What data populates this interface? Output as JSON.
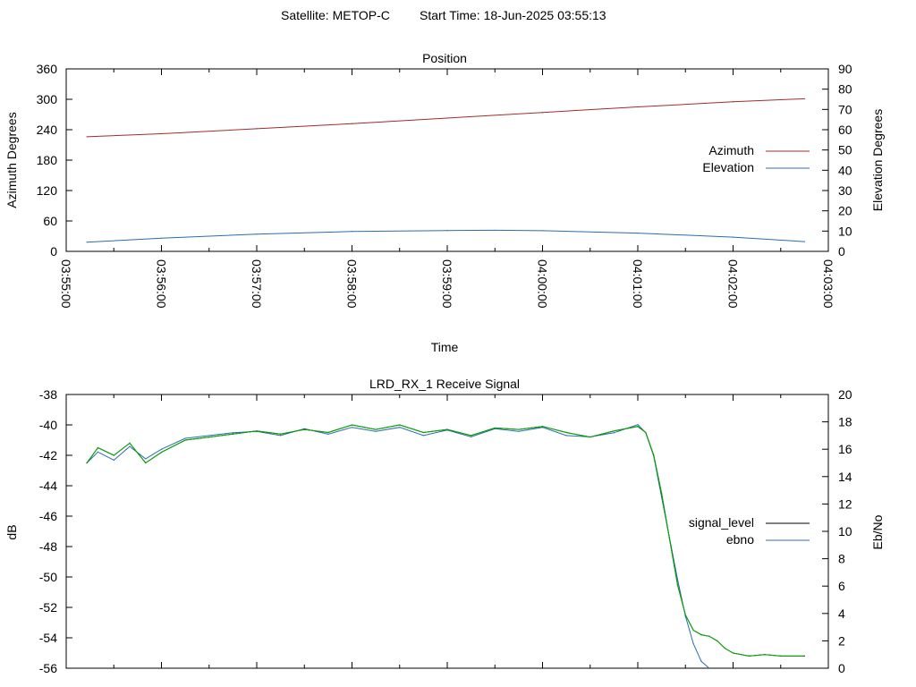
{
  "header": {
    "satellite_text": "Satellite: METOP-C",
    "start_time_text": "Start Time: 18-Jun-2025 03:55:13"
  },
  "colors": {
    "azimuth": "#a52a2a",
    "elevation": "#2a6db0",
    "signal_level": "#000000",
    "ebno": "#2a6db0",
    "signal_overlay": "#00b000"
  },
  "chart_data": [
    {
      "type": "line",
      "title": "Position",
      "xlabel": "Time",
      "ylabel": "Azimuth Degrees",
      "y2label": "Elevation Degrees",
      "xlim": [
        "03:55:00",
        "04:03:00"
      ],
      "ylim": [
        0,
        360
      ],
      "y2lim": [
        0,
        90
      ],
      "x_ticks": [
        "03:55:00",
        "03:56:00",
        "03:57:00",
        "03:58:00",
        "03:59:00",
        "04:00:00",
        "04:01:00",
        "04:02:00",
        "04:03:00"
      ],
      "y_ticks": [
        "0",
        "60",
        "120",
        "180",
        "240",
        "300",
        "360"
      ],
      "y2_ticks": [
        "0",
        "10",
        "20",
        "30",
        "40",
        "50",
        "60",
        "70",
        "80",
        "90"
      ],
      "grid": false,
      "legend": "right",
      "series": [
        {
          "name": "Azimuth",
          "axis": "y",
          "x": [
            "03:55:13",
            "03:56:00",
            "03:57:00",
            "03:58:00",
            "03:59:00",
            "04:00:00",
            "04:01:00",
            "04:02:00",
            "04:02:45"
          ],
          "values": [
            226,
            232,
            242,
            252,
            263,
            274,
            285,
            295,
            301
          ]
        },
        {
          "name": "Elevation",
          "axis": "y2",
          "x": [
            "03:55:13",
            "03:56:00",
            "03:57:00",
            "03:58:00",
            "03:59:00",
            "03:59:30",
            "04:00:00",
            "04:01:00",
            "04:02:00",
            "04:02:45"
          ],
          "values": [
            4.5,
            6.5,
            8.5,
            9.8,
            10.3,
            10.4,
            10.2,
            9.0,
            7.0,
            4.8
          ]
        }
      ]
    },
    {
      "type": "line",
      "title": "LRD_RX_1 Receive Signal",
      "ylabel": "dB",
      "y2label": "Eb/No",
      "xlim": [
        "03:55:00",
        "04:03:00"
      ],
      "ylim": [
        -56,
        -38
      ],
      "y2lim": [
        0,
        20
      ],
      "y_ticks": [
        "-56",
        "-54",
        "-52",
        "-50",
        "-48",
        "-46",
        "-44",
        "-42",
        "-40",
        "-38"
      ],
      "y2_ticks": [
        "0",
        "2",
        "4",
        "6",
        "8",
        "10",
        "12",
        "14",
        "16",
        "18",
        "20"
      ],
      "grid": false,
      "legend": "right",
      "series": [
        {
          "name": "signal_level",
          "axis": "y",
          "x": [
            "03:55:13",
            "03:55:20",
            "03:55:30",
            "03:55:40",
            "03:55:50",
            "03:56:00",
            "03:56:15",
            "03:56:30",
            "03:56:45",
            "03:57:00",
            "03:57:15",
            "03:57:30",
            "03:57:45",
            "03:58:00",
            "03:58:15",
            "03:58:30",
            "03:58:45",
            "03:59:00",
            "03:59:15",
            "03:59:30",
            "03:59:45",
            "04:00:00",
            "04:00:15",
            "04:00:30",
            "04:00:45",
            "04:01:00",
            "04:01:05",
            "04:01:10",
            "04:01:15",
            "04:01:20",
            "04:01:25",
            "04:01:30",
            "04:01:35",
            "04:01:40",
            "04:01:45",
            "04:01:50",
            "04:01:55",
            "04:02:00",
            "04:02:10",
            "04:02:20",
            "04:02:30",
            "04:02:45"
          ],
          "values": [
            -42.5,
            -41.5,
            -42.0,
            -41.2,
            -42.5,
            -41.8,
            -41.0,
            -40.8,
            -40.6,
            -40.4,
            -40.6,
            -40.3,
            -40.5,
            -40.0,
            -40.3,
            -40.0,
            -40.5,
            -40.3,
            -40.7,
            -40.2,
            -40.3,
            -40.1,
            -40.5,
            -40.8,
            -40.4,
            -40.1,
            -40.5,
            -42.0,
            -44.5,
            -47.5,
            -50.5,
            -52.5,
            -53.5,
            -53.8,
            -53.9,
            -54.2,
            -54.7,
            -55.0,
            -55.2,
            -55.1,
            -55.2,
            -55.2
          ]
        },
        {
          "name": "ebno",
          "axis": "y2",
          "x": [
            "03:55:13",
            "03:55:20",
            "03:55:30",
            "03:55:40",
            "03:55:50",
            "03:56:00",
            "03:56:15",
            "03:56:30",
            "03:56:45",
            "03:57:00",
            "03:57:15",
            "03:57:30",
            "03:57:45",
            "03:58:00",
            "03:58:15",
            "03:58:30",
            "03:58:45",
            "03:59:00",
            "03:59:15",
            "03:59:30",
            "03:59:45",
            "04:00:00",
            "04:00:15",
            "04:00:30",
            "04:00:45",
            "04:01:00",
            "04:01:05",
            "04:01:10",
            "04:01:15",
            "04:01:20",
            "04:01:25",
            "04:01:30",
            "04:01:35",
            "04:01:40",
            "04:01:45"
          ],
          "values": [
            15.0,
            15.8,
            15.2,
            16.2,
            15.3,
            16.0,
            16.8,
            17.0,
            17.2,
            17.3,
            17.0,
            17.5,
            17.1,
            17.6,
            17.3,
            17.6,
            17.0,
            17.4,
            16.9,
            17.5,
            17.3,
            17.6,
            17.0,
            16.9,
            17.2,
            17.8,
            17.2,
            15.5,
            12.5,
            9.5,
            6.5,
            3.8,
            1.8,
            0.5,
            -0.2
          ]
        }
      ]
    }
  ]
}
